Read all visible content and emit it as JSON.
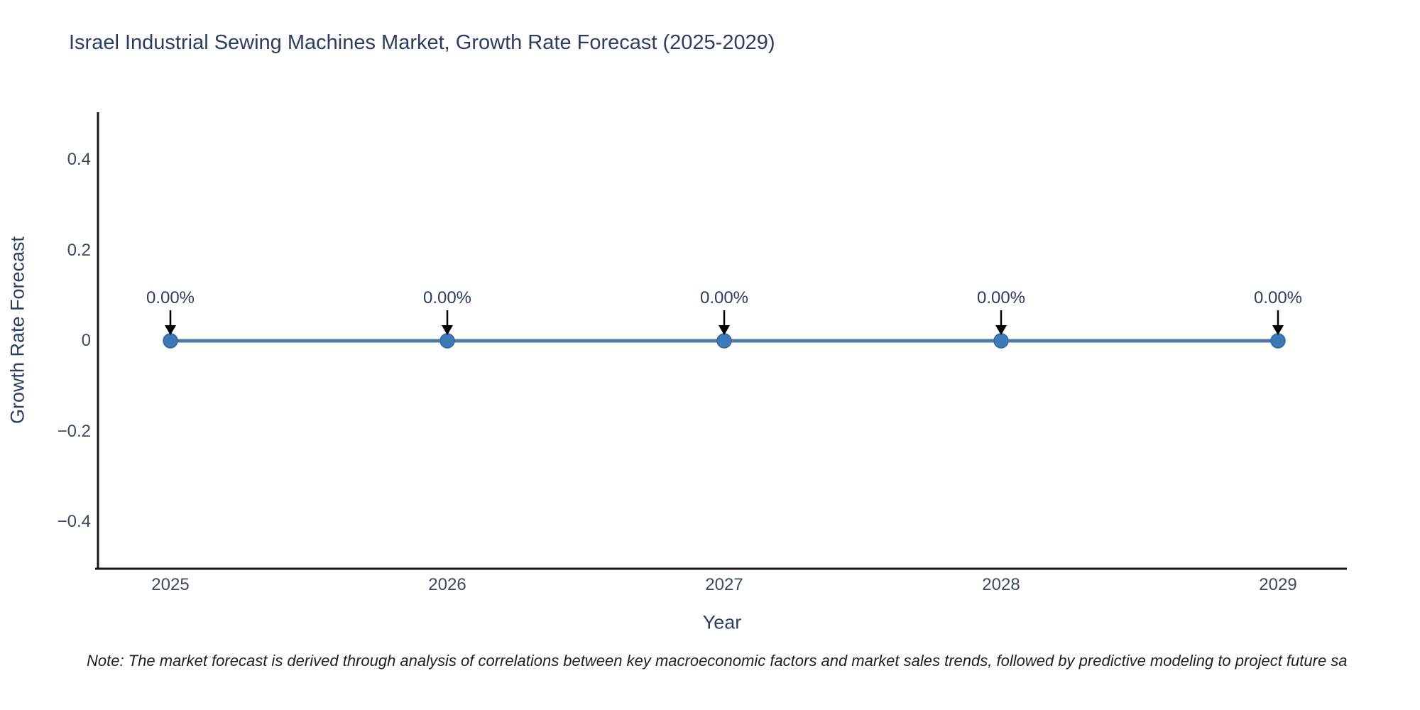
{
  "title": "Israel Industrial Sewing Machines Market, Growth Rate Forecast (2025-2029)",
  "note": "Note: The market forecast is derived through analysis of correlations between key macroeconomic factors and market sales trends, followed by predictive modeling to project future sa",
  "chart_data": {
    "type": "line",
    "title": "Israel Industrial Sewing Machines Market, Growth Rate Forecast (2025-2029)",
    "xlabel": "Year",
    "ylabel": "Growth Rate Forecast",
    "x": [
      2025,
      2026,
      2027,
      2028,
      2029
    ],
    "values": [
      0,
      0,
      0,
      0,
      0
    ],
    "point_labels": [
      "0.00%",
      "0.00%",
      "0.00%",
      "0.00%",
      "0.00%"
    ],
    "xtick_labels": [
      "2025",
      "2026",
      "2027",
      "2028",
      "2029"
    ],
    "yticks": [
      0.4,
      0.2,
      0,
      -0.2,
      -0.4
    ],
    "ytick_labels": [
      "0.4",
      "0.2",
      "0",
      "−0.2",
      "−0.4"
    ],
    "ylim": [
      -0.5,
      0.5
    ],
    "grid": false,
    "legend": "none",
    "colors": {
      "line": "#4f7ca4",
      "marker": "#3d7ab8",
      "marker_edge": "#35689e",
      "arrow": "#000000",
      "axis_spine": "#161616",
      "text": "#2a3f5f"
    }
  }
}
